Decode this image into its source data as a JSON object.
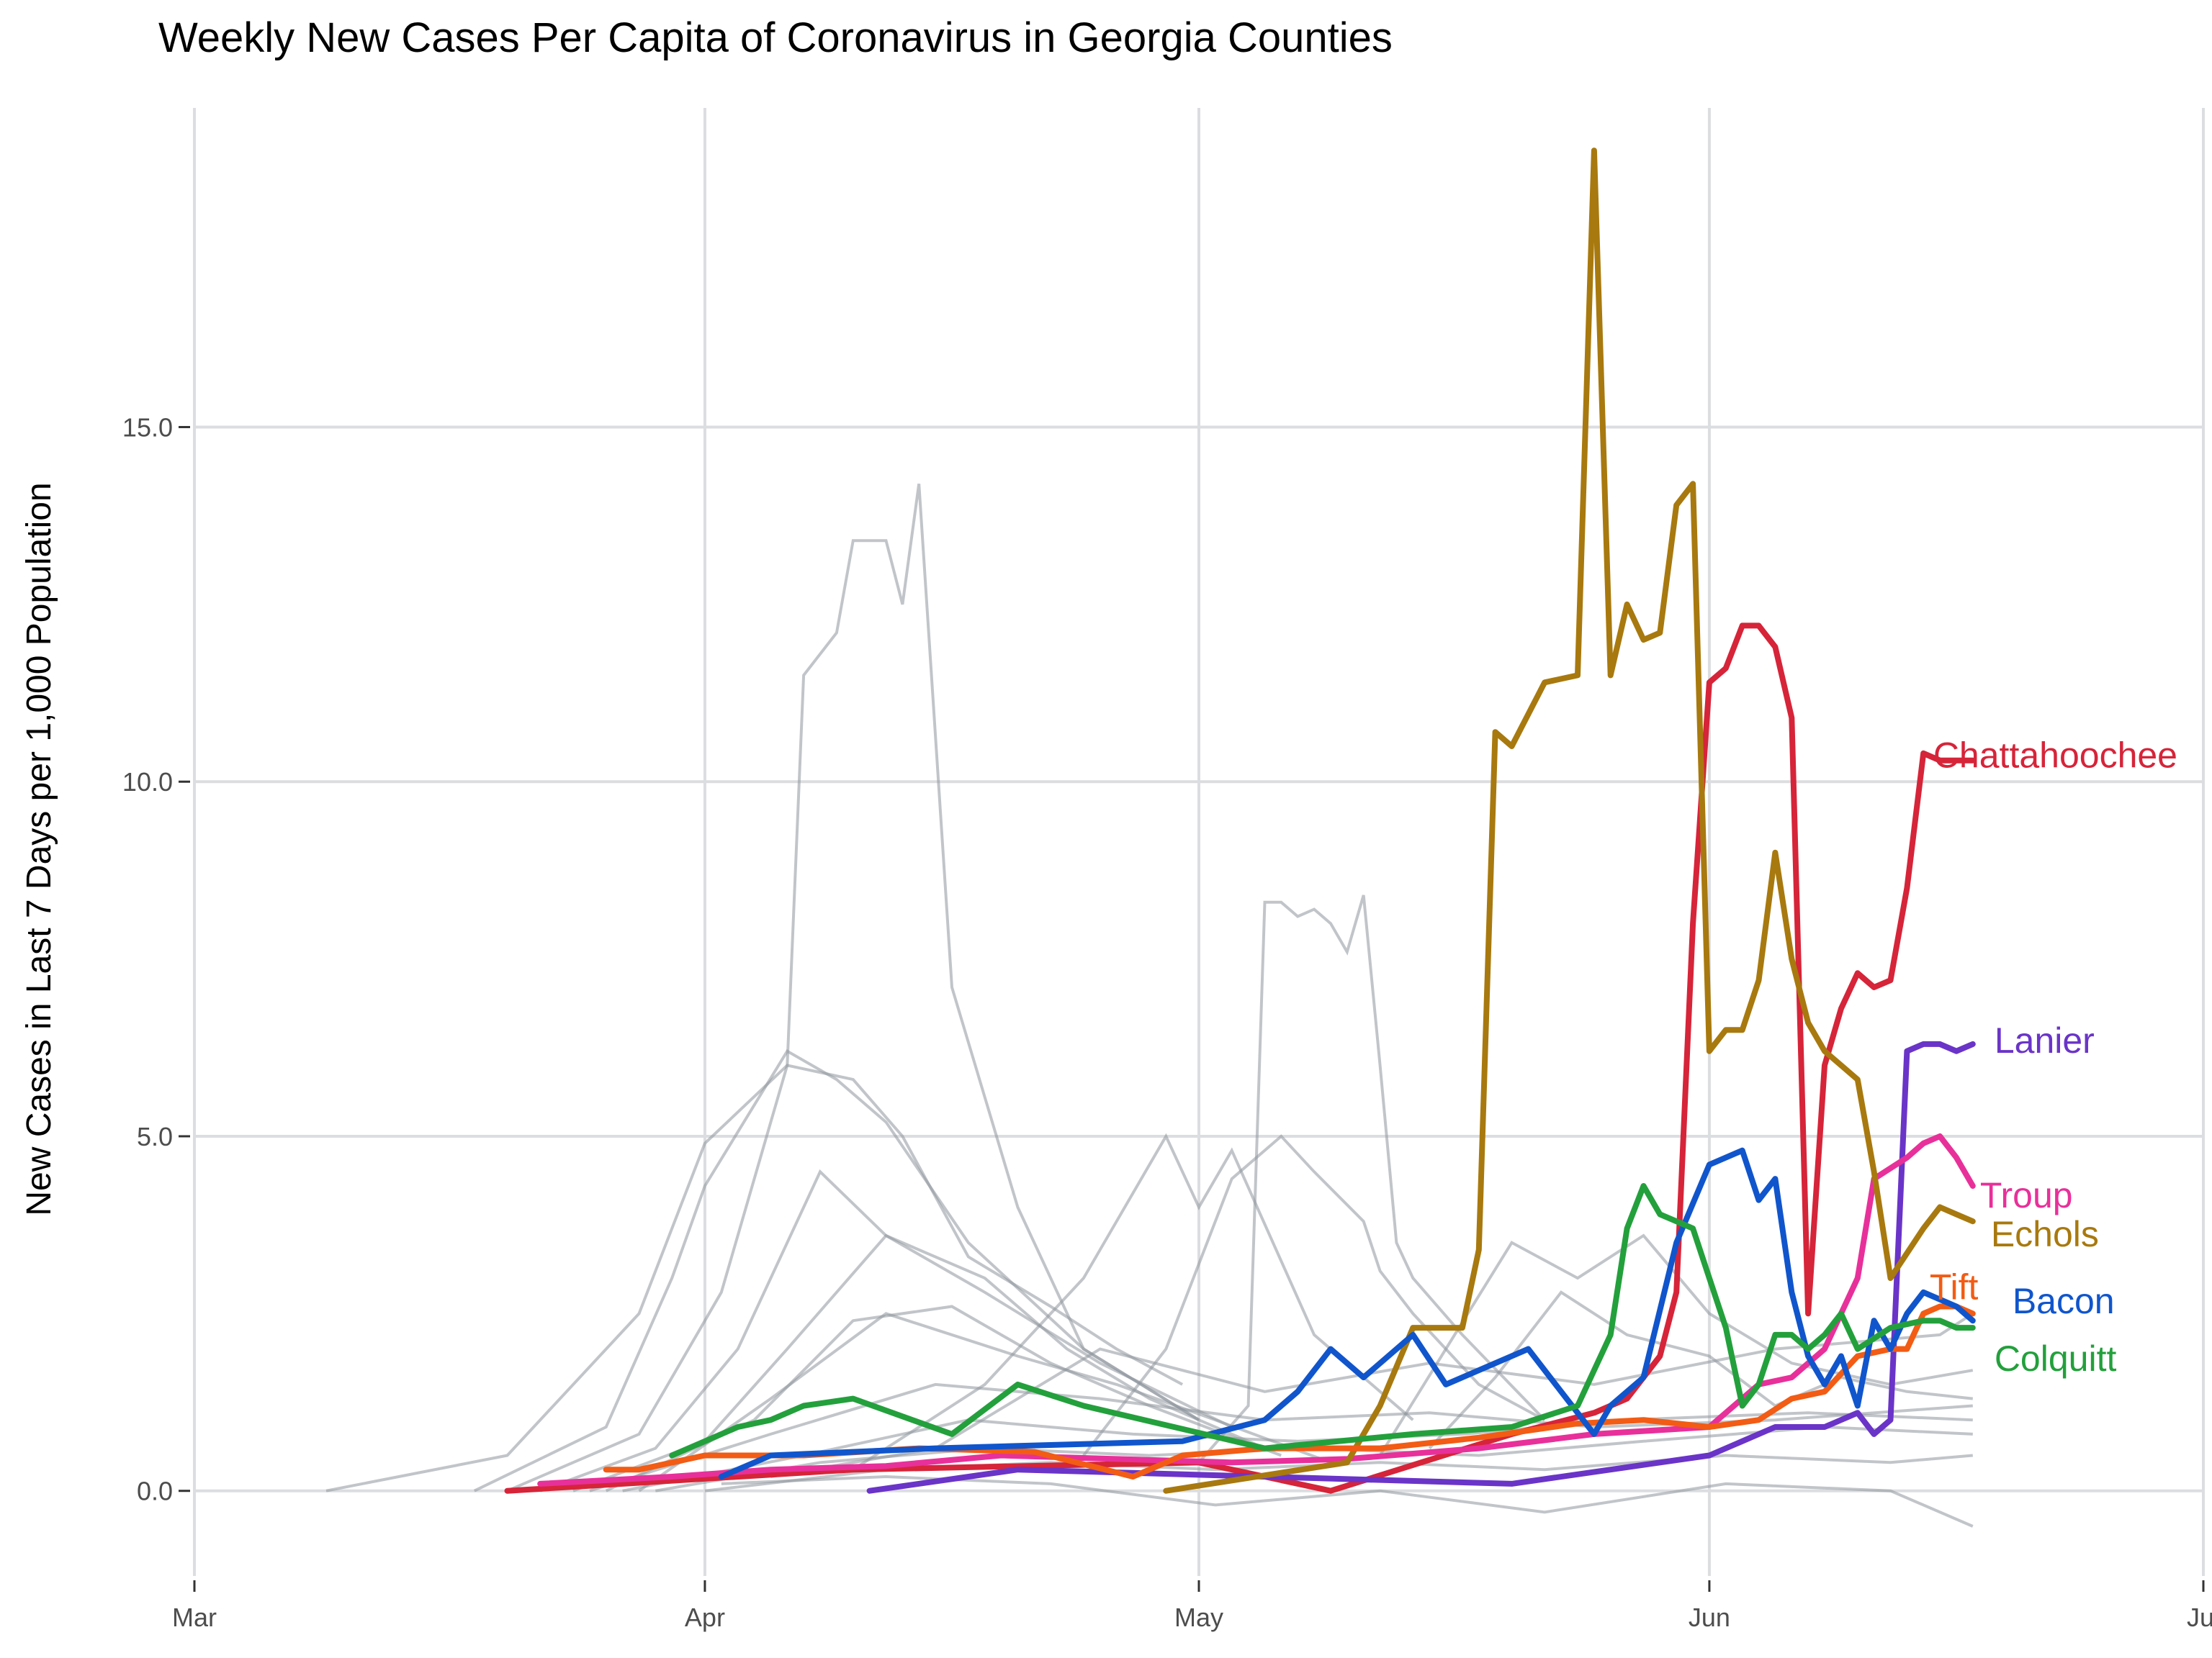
{
  "chart_data": {
    "type": "line",
    "title": "Weekly New Cases Per Capita of Coronavirus in Georgia Counties",
    "xlabel": "",
    "ylabel": "New Cases in Last 7 Days per 1,000 Population",
    "x_axis": {
      "type": "date",
      "range": [
        "2020-03-01",
        "2020-07-01"
      ],
      "ticks": [
        {
          "date": "2020-03-01",
          "label": "Mar"
        },
        {
          "date": "2020-04-01",
          "label": "Apr"
        },
        {
          "date": "2020-05-01",
          "label": "May"
        },
        {
          "date": "2020-06-01",
          "label": "Jun"
        },
        {
          "date": "2020-07-01",
          "label": "Jul"
        }
      ]
    },
    "y_axis": {
      "range": [
        -1.2,
        19.5
      ],
      "ticks": [
        {
          "value": 0,
          "label": "0.0"
        },
        {
          "value": 5,
          "label": "5.0"
        },
        {
          "value": 10,
          "label": "10.0"
        },
        {
          "value": 15,
          "label": "15.0"
        }
      ]
    },
    "grid": true,
    "legend": "direct labels at line ends",
    "background_series_color": "#8e969c",
    "background_series": [
      {
        "x": [
          "2020-03-09",
          "2020-03-20",
          "2020-03-28",
          "2020-04-01",
          "2020-04-06",
          "2020-04-10",
          "2020-04-13",
          "2020-04-17",
          "2020-04-22",
          "2020-04-26",
          "2020-04-30"
        ],
        "y": [
          0,
          0.5,
          2.5,
          4.9,
          6.0,
          5.8,
          5.0,
          3.3,
          2.6,
          2.0,
          1.5
        ]
      },
      {
        "x": [
          "2020-03-18",
          "2020-03-26",
          "2020-03-30",
          "2020-04-01",
          "2020-04-06",
          "2020-04-09",
          "2020-04-12",
          "2020-04-17",
          "2020-04-24",
          "2020-05-01"
        ],
        "y": [
          0,
          0.9,
          3.0,
          4.3,
          6.2,
          5.8,
          5.2,
          3.5,
          2.0,
          1.0
        ]
      },
      {
        "x": [
          "2020-03-20",
          "2020-03-28",
          "2020-04-02",
          "2020-04-06",
          "2020-04-07",
          "2020-04-09",
          "2020-04-10",
          "2020-04-12",
          "2020-04-13",
          "2020-04-14",
          "2020-04-16",
          "2020-04-20",
          "2020-04-24",
          "2020-05-01"
        ],
        "y": [
          0,
          0.8,
          2.8,
          6.0,
          11.5,
          12.1,
          13.4,
          13.4,
          12.5,
          14.2,
          7.1,
          4.0,
          2.0,
          1.0
        ]
      },
      {
        "x": [
          "2020-03-22",
          "2020-03-29",
          "2020-04-03",
          "2020-04-08",
          "2020-04-12",
          "2020-04-18",
          "2020-04-25",
          "2020-05-03"
        ],
        "y": [
          0,
          0.6,
          2.0,
          4.5,
          3.6,
          2.8,
          1.8,
          0.9
        ]
      },
      {
        "x": [
          "2020-03-24",
          "2020-04-01",
          "2020-04-06",
          "2020-04-12",
          "2020-04-18",
          "2020-04-23",
          "2020-04-28",
          "2020-05-05"
        ],
        "y": [
          0,
          0.7,
          2.0,
          3.6,
          3.0,
          2.0,
          1.3,
          0.6
        ]
      },
      {
        "x": [
          "2020-03-26",
          "2020-04-04",
          "2020-04-10",
          "2020-04-16",
          "2020-04-22",
          "2020-04-28",
          "2020-05-06"
        ],
        "y": [
          0,
          1.0,
          2.4,
          2.6,
          1.8,
          1.2,
          0.5
        ]
      },
      {
        "x": [
          "2020-03-28",
          "2020-04-05",
          "2020-04-12",
          "2020-04-20",
          "2020-04-26",
          "2020-05-02",
          "2020-05-09"
        ],
        "y": [
          0,
          1.3,
          2.5,
          1.9,
          1.5,
          1.0,
          0.4
        ]
      },
      {
        "x": [
          "2020-04-10",
          "2020-04-18",
          "2020-04-24",
          "2020-04-29",
          "2020-05-01",
          "2020-05-03",
          "2020-05-08",
          "2020-05-14"
        ],
        "y": [
          0.3,
          1.5,
          3.0,
          5.0,
          4.0,
          4.8,
          2.2,
          1.0
        ]
      },
      {
        "x": [
          "2020-04-24",
          "2020-04-29",
          "2020-05-03",
          "2020-05-06",
          "2020-05-08",
          "2020-05-11",
          "2020-05-12",
          "2020-05-14",
          "2020-05-18",
          "2020-05-22"
        ],
        "y": [
          0.5,
          2.0,
          4.4,
          5.0,
          4.5,
          3.8,
          3.1,
          2.5,
          1.5,
          1.0
        ]
      },
      {
        "x": [
          "2020-05-01",
          "2020-05-04",
          "2020-05-05",
          "2020-05-06",
          "2020-05-07",
          "2020-05-08",
          "2020-05-09",
          "2020-05-10",
          "2020-05-11",
          "2020-05-12",
          "2020-05-13",
          "2020-05-14",
          "2020-05-17",
          "2020-05-22"
        ],
        "y": [
          0.4,
          1.2,
          8.3,
          8.3,
          8.1,
          8.2,
          8.0,
          7.6,
          8.4,
          6.0,
          3.5,
          3.0,
          2.2,
          1.0
        ]
      },
      {
        "x": [
          "2020-05-12",
          "2020-05-16",
          "2020-05-20",
          "2020-05-24",
          "2020-05-28",
          "2020-06-01",
          "2020-06-06",
          "2020-06-12",
          "2020-06-17"
        ],
        "y": [
          0.5,
          2.0,
          3.5,
          3.0,
          3.6,
          2.5,
          1.8,
          1.5,
          1.7
        ]
      },
      {
        "x": [
          "2020-05-15",
          "2020-05-19",
          "2020-05-23",
          "2020-05-27",
          "2020-06-01",
          "2020-06-05",
          "2020-06-09",
          "2020-06-13",
          "2020-06-17"
        ],
        "y": [
          0.6,
          1.6,
          2.8,
          2.2,
          1.9,
          1.2,
          1.6,
          1.4,
          1.3
        ]
      },
      {
        "x": [
          "2020-03-25",
          "2020-04-05",
          "2020-04-15",
          "2020-04-25",
          "2020-05-05",
          "2020-05-15",
          "2020-05-25",
          "2020-06-05",
          "2020-06-17"
        ],
        "y": [
          0,
          0.8,
          1.5,
          1.3,
          1.0,
          1.1,
          0.9,
          1.0,
          1.2
        ]
      },
      {
        "x": [
          "2020-03-27",
          "2020-04-07",
          "2020-04-17",
          "2020-04-27",
          "2020-05-07",
          "2020-05-17",
          "2020-05-27",
          "2020-06-07",
          "2020-06-17"
        ],
        "y": [
          0,
          0.5,
          1.0,
          0.8,
          0.7,
          0.8,
          1.0,
          1.1,
          1.0
        ]
      },
      {
        "x": [
          "2020-03-29",
          "2020-04-08",
          "2020-04-18",
          "2020-04-28",
          "2020-05-08",
          "2020-05-18",
          "2020-05-28",
          "2020-06-08",
          "2020-06-17"
        ],
        "y": [
          0,
          0.4,
          0.6,
          0.5,
          0.6,
          0.5,
          0.7,
          0.9,
          0.8
        ]
      },
      {
        "x": [
          "2020-04-01",
          "2020-04-12",
          "2020-04-22",
          "2020-05-02",
          "2020-05-12",
          "2020-05-22",
          "2020-06-02",
          "2020-06-12",
          "2020-06-17"
        ],
        "y": [
          0,
          0.3,
          0.4,
          0.3,
          0.4,
          0.3,
          0.5,
          0.4,
          0.5
        ]
      },
      {
        "x": [
          "2020-04-02",
          "2020-04-12",
          "2020-04-22",
          "2020-05-02",
          "2020-05-12",
          "2020-05-22",
          "2020-06-02",
          "2020-06-12",
          "2020-06-17"
        ],
        "y": [
          0.1,
          0.2,
          0.1,
          -0.2,
          0.0,
          -0.3,
          0.1,
          0.0,
          -0.5
        ]
      },
      {
        "x": [
          "2020-04-05",
          "2020-04-15",
          "2020-04-25",
          "2020-05-05",
          "2020-05-15",
          "2020-05-25",
          "2020-06-05",
          "2020-06-15",
          "2020-06-17"
        ],
        "y": [
          0.2,
          0.6,
          2.0,
          1.4,
          1.8,
          1.5,
          2.0,
          2.2,
          2.5
        ]
      }
    ],
    "series": [
      {
        "name": "Chattahoochee",
        "color": "#d62439",
        "x": [
          "2020-03-20",
          "2020-04-10",
          "2020-05-01",
          "2020-05-09",
          "2020-05-20",
          "2020-05-25",
          "2020-05-27",
          "2020-05-29",
          "2020-05-30",
          "2020-05-31",
          "2020-06-01",
          "2020-06-02",
          "2020-06-03",
          "2020-06-04",
          "2020-06-05",
          "2020-06-06",
          "2020-06-07",
          "2020-06-08",
          "2020-06-09",
          "2020-06-10",
          "2020-06-11",
          "2020-06-12",
          "2020-06-13",
          "2020-06-14",
          "2020-06-15",
          "2020-06-16",
          "2020-06-17"
        ],
        "y": [
          0.0,
          0.3,
          0.4,
          0.0,
          0.8,
          1.1,
          1.3,
          1.9,
          2.8,
          8.0,
          11.4,
          11.6,
          12.2,
          12.2,
          11.9,
          10.9,
          2.5,
          6.0,
          6.8,
          7.3,
          7.1,
          7.2,
          8.5,
          10.4,
          10.3,
          10.3,
          10.3
        ]
      },
      {
        "name": "Lanier",
        "color": "#6a34c8",
        "x": [
          "2020-04-11",
          "2020-04-20",
          "2020-05-05",
          "2020-05-20",
          "2020-06-01",
          "2020-06-05",
          "2020-06-08",
          "2020-06-10",
          "2020-06-11",
          "2020-06-12",
          "2020-06-13",
          "2020-06-14",
          "2020-06-15",
          "2020-06-16",
          "2020-06-17"
        ],
        "y": [
          0.0,
          0.3,
          0.2,
          0.1,
          0.5,
          0.9,
          0.9,
          1.1,
          0.8,
          1.0,
          6.2,
          6.3,
          6.3,
          6.2,
          6.3
        ]
      },
      {
        "name": "Troup",
        "color": "#e8309a",
        "x": [
          "2020-03-22",
          "2020-03-30",
          "2020-04-05",
          "2020-04-12",
          "2020-04-19",
          "2020-04-26",
          "2020-05-03",
          "2020-05-10",
          "2020-05-18",
          "2020-05-25",
          "2020-06-01",
          "2020-06-04",
          "2020-06-06",
          "2020-06-08",
          "2020-06-10",
          "2020-06-11",
          "2020-06-13",
          "2020-06-14",
          "2020-06-15",
          "2020-06-16",
          "2020-06-17"
        ],
        "y": [
          0.1,
          0.2,
          0.3,
          0.35,
          0.5,
          0.45,
          0.4,
          0.45,
          0.6,
          0.8,
          0.9,
          1.5,
          1.6,
          2.0,
          3.0,
          4.4,
          4.7,
          4.9,
          5.0,
          4.7,
          4.3
        ]
      },
      {
        "name": "Echols",
        "color": "#a8790e",
        "x": [
          "2020-04-29",
          "2020-05-10",
          "2020-05-12",
          "2020-05-14",
          "2020-05-17",
          "2020-05-18",
          "2020-05-19",
          "2020-05-20",
          "2020-05-22",
          "2020-05-24",
          "2020-05-25",
          "2020-05-26",
          "2020-05-27",
          "2020-05-28",
          "2020-05-29",
          "2020-05-30",
          "2020-05-31",
          "2020-06-01",
          "2020-06-02",
          "2020-06-03",
          "2020-06-04",
          "2020-06-05",
          "2020-06-06",
          "2020-06-07",
          "2020-06-08",
          "2020-06-09",
          "2020-06-10",
          "2020-06-11",
          "2020-06-12",
          "2020-06-14",
          "2020-06-15",
          "2020-06-16",
          "2020-06-17"
        ],
        "y": [
          0.0,
          0.4,
          1.2,
          2.3,
          2.3,
          3.4,
          10.7,
          10.5,
          11.4,
          11.5,
          18.9,
          11.5,
          12.5,
          12.0,
          12.1,
          13.9,
          14.2,
          6.2,
          6.5,
          6.5,
          7.2,
          9.0,
          7.5,
          6.6,
          6.2,
          6.0,
          5.8,
          4.5,
          3.0,
          3.7,
          4.0,
          3.9,
          3.8
        ]
      },
      {
        "name": "Tift",
        "color": "#f25c14",
        "x": [
          "2020-03-26",
          "2020-03-28",
          "2020-04-01",
          "2020-04-07",
          "2020-04-14",
          "2020-04-21",
          "2020-04-27",
          "2020-04-30",
          "2020-05-05",
          "2020-05-12",
          "2020-05-18",
          "2020-05-24",
          "2020-05-28",
          "2020-06-01",
          "2020-06-04",
          "2020-06-06",
          "2020-06-08",
          "2020-06-10",
          "2020-06-12",
          "2020-06-13",
          "2020-06-14",
          "2020-06-15",
          "2020-06-16",
          "2020-06-17"
        ],
        "y": [
          0.3,
          0.3,
          0.5,
          0.5,
          0.6,
          0.55,
          0.2,
          0.5,
          0.6,
          0.6,
          0.75,
          0.95,
          1.0,
          0.9,
          1.0,
          1.3,
          1.4,
          1.9,
          2.0,
          2.0,
          2.5,
          2.6,
          2.6,
          2.5
        ]
      },
      {
        "name": "Bacon",
        "color": "#1055cc",
        "x": [
          "2020-04-02",
          "2020-04-05",
          "2020-04-15",
          "2020-04-30",
          "2020-05-05",
          "2020-05-07",
          "2020-05-09",
          "2020-05-11",
          "2020-05-14",
          "2020-05-16",
          "2020-05-19",
          "2020-05-21",
          "2020-05-23",
          "2020-05-25",
          "2020-05-26",
          "2020-05-28",
          "2020-05-30",
          "2020-06-01",
          "2020-06-02",
          "2020-06-03",
          "2020-06-04",
          "2020-06-05",
          "2020-06-06",
          "2020-06-07",
          "2020-06-08",
          "2020-06-09",
          "2020-06-10",
          "2020-06-11",
          "2020-06-12",
          "2020-06-13",
          "2020-06-14",
          "2020-06-15",
          "2020-06-16",
          "2020-06-17"
        ],
        "y": [
          0.2,
          0.5,
          0.6,
          0.7,
          1.0,
          1.4,
          2.0,
          1.6,
          2.2,
          1.5,
          1.8,
          2.0,
          1.4,
          0.8,
          1.2,
          1.6,
          3.5,
          4.6,
          4.7,
          4.8,
          4.1,
          4.4,
          2.8,
          1.9,
          1.5,
          1.9,
          1.2,
          2.4,
          2.0,
          2.5,
          2.8,
          2.7,
          2.6,
          2.4
        ]
      },
      {
        "name": "Colquitt",
        "color": "#23a03c",
        "x": [
          "2020-03-30",
          "2020-04-03",
          "2020-04-05",
          "2020-04-07",
          "2020-04-10",
          "2020-04-16",
          "2020-04-20",
          "2020-04-24",
          "2020-05-05",
          "2020-05-14",
          "2020-05-20",
          "2020-05-24",
          "2020-05-26",
          "2020-05-27",
          "2020-05-28",
          "2020-05-29",
          "2020-05-30",
          "2020-05-31",
          "2020-06-01",
          "2020-06-02",
          "2020-06-03",
          "2020-06-04",
          "2020-06-05",
          "2020-06-06",
          "2020-06-07",
          "2020-06-08",
          "2020-06-09",
          "2020-06-10",
          "2020-06-12",
          "2020-06-14",
          "2020-06-15",
          "2020-06-16",
          "2020-06-17"
        ],
        "y": [
          0.5,
          0.9,
          1.0,
          1.2,
          1.3,
          0.8,
          1.5,
          1.2,
          0.6,
          0.8,
          0.9,
          1.2,
          2.2,
          3.7,
          4.3,
          3.9,
          3.8,
          3.7,
          3.0,
          2.3,
          1.2,
          1.5,
          2.2,
          2.2,
          2.0,
          2.2,
          2.5,
          2.0,
          2.3,
          2.4,
          2.4,
          2.3,
          2.3
        ]
      }
    ],
    "labels": [
      "Chattahoochee",
      "Lanier",
      "Troup",
      "Echols",
      "Tift",
      "Bacon",
      "Colquitt"
    ]
  }
}
